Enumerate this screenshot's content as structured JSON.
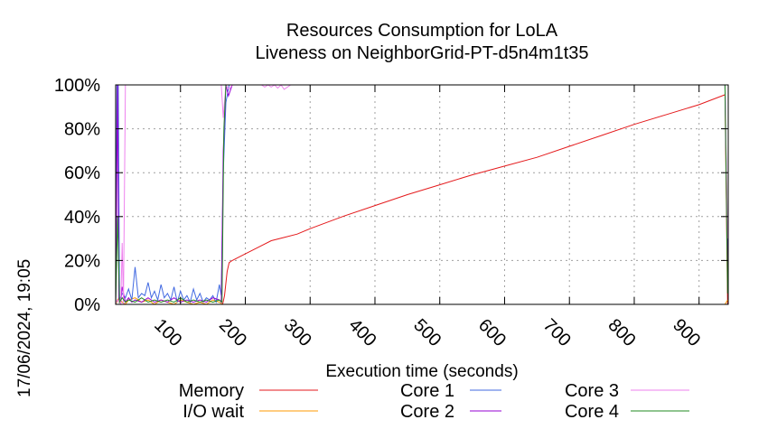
{
  "chart_data": {
    "type": "line",
    "title": "Resources Consumption for LoLA",
    "subtitle": "Liveness on NeighborGrid-PT-d5n4m1t35",
    "xlabel": "Execution time (seconds)",
    "ylabel": "",
    "timestamp": "17/06/2024, 19:05",
    "xlim": [
      0,
      945
    ],
    "ylim": [
      0,
      100
    ],
    "xticks": [
      100,
      200,
      300,
      400,
      500,
      600,
      700,
      800,
      900
    ],
    "yticks": [
      {
        "value": 0,
        "label": "0%"
      },
      {
        "value": 20,
        "label": "20%"
      },
      {
        "value": 40,
        "label": "40%"
      },
      {
        "value": 60,
        "label": "60%"
      },
      {
        "value": 80,
        "label": "80%"
      },
      {
        "value": 100,
        "label": "100%"
      }
    ],
    "grid": true,
    "legend_placement": "bottom",
    "series": [
      {
        "name": "Memory",
        "color": "#e41a1c",
        "x": [
          0,
          165,
          168,
          172,
          175,
          180,
          200,
          220,
          240,
          260,
          280,
          300,
          350,
          400,
          450,
          500,
          550,
          600,
          650,
          700,
          750,
          800,
          850,
          900,
          940,
          944
        ],
        "y": [
          0,
          0,
          4,
          15,
          19,
          20,
          23,
          26,
          29,
          30.5,
          32,
          34.5,
          40,
          45,
          50,
          54.5,
          59,
          63,
          67,
          72,
          77,
          82,
          86.5,
          91,
          95.5,
          0
        ]
      },
      {
        "name": "I/O wait",
        "color": "#ff9900",
        "x": [
          0,
          5,
          10,
          15,
          20,
          30,
          40,
          50,
          60,
          70,
          80,
          90,
          100,
          110,
          120,
          130,
          140,
          150,
          160,
          165,
          170,
          940,
          944
        ],
        "y": [
          0,
          3,
          1,
          0,
          2,
          3,
          1,
          2,
          0,
          2,
          1,
          0,
          2,
          1,
          0,
          1,
          0,
          2,
          1,
          0,
          0,
          0,
          2
        ]
      },
      {
        "name": "Core 1",
        "color": "#4169e1",
        "x": [
          0,
          2,
          4,
          6,
          10,
          15,
          20,
          25,
          30,
          35,
          40,
          45,
          50,
          55,
          60,
          65,
          70,
          75,
          80,
          85,
          90,
          95,
          100,
          105,
          110,
          115,
          120,
          125,
          130,
          135,
          140,
          145,
          150,
          155,
          160,
          163,
          166,
          170,
          175,
          180,
          940,
          944
        ],
        "y": [
          0,
          100,
          100,
          2,
          5,
          3,
          7,
          2,
          17,
          3,
          5,
          4,
          10,
          3,
          6,
          2,
          9,
          3,
          5,
          2,
          8,
          1,
          6,
          2,
          4,
          1,
          7,
          2,
          5,
          1,
          3,
          2,
          4,
          1,
          9,
          4,
          60,
          92,
          100,
          100,
          100,
          20
        ]
      },
      {
        "name": "Core 2",
        "color": "#9400d3",
        "x": [
          0,
          3,
          5,
          8,
          10,
          15,
          20,
          25,
          30,
          40,
          50,
          60,
          70,
          80,
          90,
          100,
          110,
          120,
          130,
          140,
          150,
          160,
          163,
          166,
          170,
          174,
          180,
          940,
          944
        ],
        "y": [
          0,
          100,
          2,
          1,
          8,
          1,
          3,
          1,
          2,
          1,
          3,
          1,
          2,
          1,
          3,
          1,
          2,
          1,
          2,
          1,
          3,
          2,
          1,
          70,
          100,
          95,
          100,
          100,
          15
        ]
      },
      {
        "name": "Core 3",
        "color": "#ee82ee",
        "x": [
          0,
          2,
          5,
          8,
          10,
          12,
          15,
          20,
          160,
          163,
          166,
          170,
          175,
          180,
          200,
          225,
          230,
          235,
          240,
          245,
          250,
          255,
          260,
          270,
          940,
          944
        ],
        "y": [
          0,
          2,
          1,
          0,
          28,
          0,
          100,
          100,
          100,
          100,
          85,
          100,
          98,
          100,
          100,
          100,
          99,
          100,
          99,
          100,
          98.5,
          100,
          98,
          100,
          100,
          30
        ]
      },
      {
        "name": "Core 4",
        "color": "#228b22",
        "x": [
          0,
          3,
          6,
          10,
          15,
          20,
          30,
          40,
          50,
          60,
          70,
          80,
          90,
          100,
          110,
          120,
          130,
          140,
          150,
          160,
          164,
          167,
          170,
          175,
          180,
          940,
          944
        ],
        "y": [
          0,
          40,
          1,
          3,
          1,
          2,
          1,
          3,
          1,
          2,
          1,
          2,
          1,
          3,
          1,
          2,
          1,
          2,
          1,
          2,
          1,
          80,
          100,
          100,
          100,
          100,
          5
        ]
      }
    ]
  }
}
